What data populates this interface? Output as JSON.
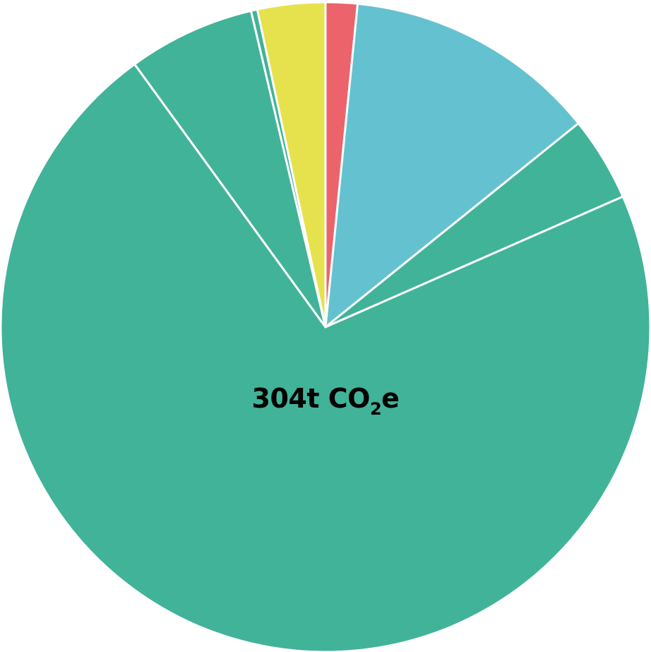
{
  "chart_data": {
    "type": "pie",
    "total_label": {
      "prefix": "304t CO",
      "subscript": "2",
      "suffix": "e"
    },
    "slices": [
      {
        "value": 1.5,
        "color": "#ec636b"
      },
      {
        "value": 12.0,
        "color": "#64c2d0"
      },
      {
        "value": 4.0,
        "color": "#41b399"
      },
      {
        "value": 68.0,
        "color": "#41b399"
      },
      {
        "value": 6.0,
        "color": "#41b399"
      },
      {
        "value": 0.3,
        "color": "#41b399"
      },
      {
        "value": 3.2,
        "color": "#e6e24d"
      }
    ],
    "start_angle_deg": 0,
    "direction": "clockwise"
  }
}
